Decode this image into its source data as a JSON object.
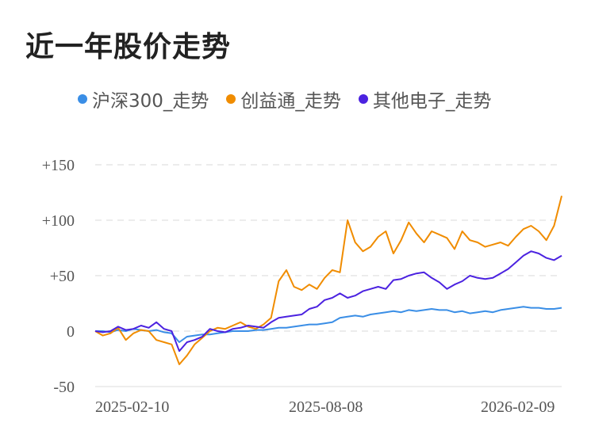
{
  "title": "近一年股价走势",
  "colors": {
    "hs300": "#3a8ee6",
    "cyt": "#f08c00",
    "other": "#4b22e0",
    "grid": "#e6e6e6",
    "text": "#555555"
  },
  "chart_data": {
    "type": "line",
    "title": "近一年股价走势",
    "ylim": [
      -50,
      150
    ],
    "y_ticks": [
      150,
      100,
      50,
      0,
      -50
    ],
    "y_tick_labels": [
      "+150",
      "+100",
      "+50",
      "0",
      "-50"
    ],
    "x_tick_labels": [
      "2025-02-10",
      "2025-08-08",
      "2026-02-09"
    ],
    "grid": true,
    "legend_position": "top",
    "x_index": [
      0,
      4,
      8,
      12,
      16,
      20,
      24,
      28,
      32,
      36,
      40,
      44,
      48,
      52,
      56,
      60,
      64,
      68,
      72,
      76,
      80,
      84,
      88,
      92,
      96,
      100,
      104,
      108,
      112,
      116,
      120,
      124,
      128,
      132,
      136,
      140,
      144,
      148,
      152,
      156,
      160,
      164,
      168,
      172,
      176,
      180,
      184,
      188,
      192,
      196,
      200,
      204,
      208,
      212,
      216,
      220,
      224,
      228,
      232,
      236,
      240,
      244
    ],
    "series": [
      {
        "name": "沪深300_走势",
        "color": "#3a8ee6",
        "values": [
          0,
          0,
          -1,
          1,
          0,
          2,
          1,
          0,
          1,
          -1,
          -2,
          -10,
          -5,
          -4,
          -3,
          -3,
          -2,
          -1,
          0,
          0,
          0,
          1,
          1,
          2,
          3,
          3,
          4,
          5,
          6,
          6,
          7,
          8,
          12,
          13,
          14,
          13,
          15,
          16,
          17,
          18,
          17,
          19,
          18,
          19,
          20,
          19,
          19,
          17,
          18,
          16,
          17,
          18,
          17,
          19,
          20,
          21,
          22,
          21,
          21,
          20,
          20,
          21
        ]
      },
      {
        "name": "创益通_走势",
        "color": "#f08c00",
        "values": [
          0,
          -4,
          -2,
          3,
          -8,
          -2,
          1,
          0,
          -8,
          -10,
          -12,
          -30,
          -22,
          -12,
          -6,
          0,
          3,
          2,
          5,
          8,
          4,
          2,
          6,
          12,
          45,
          55,
          40,
          37,
          42,
          38,
          48,
          55,
          53,
          100,
          80,
          72,
          76,
          85,
          90,
          70,
          82,
          98,
          88,
          80,
          90,
          87,
          84,
          74,
          90,
          82,
          80,
          76,
          78,
          80,
          77,
          85,
          92,
          95,
          90,
          82,
          95,
          122
        ]
      },
      {
        "name": "其他电子_走势",
        "color": "#4b22e0",
        "values": [
          0,
          -1,
          0,
          4,
          1,
          2,
          5,
          3,
          8,
          2,
          0,
          -18,
          -10,
          -8,
          -5,
          2,
          0,
          -1,
          2,
          3,
          5,
          4,
          3,
          8,
          12,
          13,
          14,
          15,
          20,
          22,
          28,
          30,
          34,
          30,
          32,
          36,
          38,
          40,
          38,
          46,
          47,
          50,
          52,
          53,
          48,
          44,
          38,
          42,
          45,
          50,
          48,
          47,
          48,
          52,
          56,
          62,
          68,
          72,
          70,
          66,
          64,
          68
        ]
      }
    ]
  }
}
